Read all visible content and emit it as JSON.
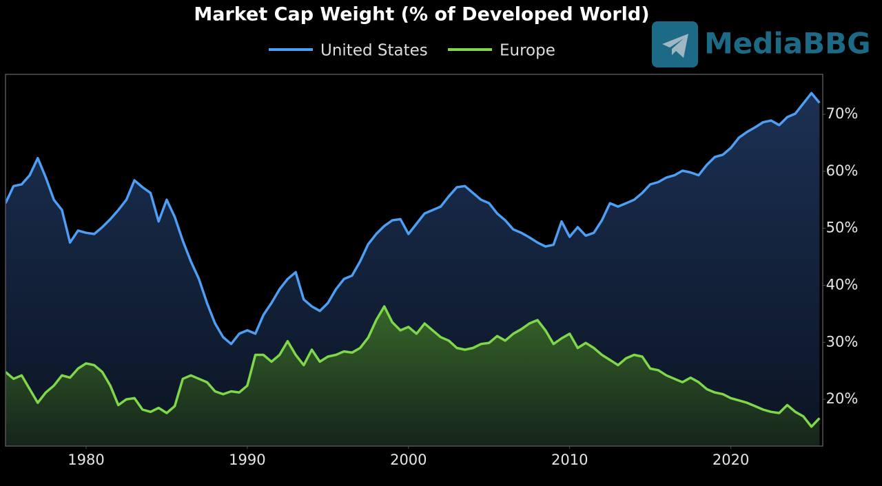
{
  "chart_data": {
    "type": "line",
    "title": "Market Cap Weight (% of Developed World)",
    "watermark": "MediaBBG",
    "x": [
      1975,
      1975.5,
      1976,
      1976.5,
      1977,
      1977.5,
      1978,
      1978.5,
      1979,
      1979.5,
      1980,
      1980.5,
      1981,
      1981.5,
      1982,
      1982.5,
      1983,
      1983.5,
      1984,
      1984.5,
      1985,
      1985.5,
      1986,
      1986.5,
      1987,
      1987.5,
      1988,
      1988.5,
      1989,
      1989.5,
      1990,
      1990.5,
      1991,
      1991.5,
      1992,
      1992.5,
      1993,
      1993.5,
      1994,
      1994.5,
      1995,
      1995.5,
      1996,
      1996.5,
      1997,
      1997.5,
      1998,
      1998.5,
      1999,
      1999.5,
      2000,
      2000.5,
      2001,
      2001.5,
      2002,
      2002.5,
      2003,
      2003.5,
      2004,
      2004.5,
      2005,
      2005.5,
      2006,
      2006.5,
      2007,
      2007.5,
      2008,
      2008.5,
      2009,
      2009.5,
      2010,
      2010.5,
      2011,
      2011.5,
      2012,
      2012.5,
      2013,
      2013.5,
      2014,
      2014.5,
      2015,
      2015.5,
      2016,
      2016.5,
      2017,
      2017.5,
      2018,
      2018.5,
      2019,
      2019.5,
      2020,
      2020.5,
      2021,
      2021.5,
      2022,
      2022.5,
      2023,
      2023.5,
      2024,
      2024.5,
      2025,
      2025.5
    ],
    "series": [
      {
        "name": "United States",
        "color": "#4d9ff5",
        "values": [
          54.4,
          57.4,
          57.7,
          59.3,
          62.3,
          58.9,
          55,
          53.2,
          47.5,
          49.6,
          49.2,
          49,
          50.2,
          51.6,
          53.2,
          55,
          58.4,
          57.2,
          56.2,
          51.2,
          55,
          52,
          47.8,
          44.2,
          41.1,
          36.9,
          33.3,
          30.9,
          29.7,
          31.5,
          32.1,
          31.5,
          34.8,
          36.9,
          39.3,
          41.1,
          42.3,
          37.5,
          36.3,
          35.5,
          36.9,
          39.3,
          41.1,
          41.7,
          44.2,
          47.2,
          49,
          50.4,
          51.4,
          51.6,
          49,
          50.8,
          52.6,
          53.2,
          53.8,
          55.6,
          57.2,
          57.4,
          56.2,
          55,
          54.4,
          52.6,
          51.4,
          49.8,
          49.2,
          48.4,
          47.5,
          46.8,
          47.1,
          51.2,
          48.5,
          50.2,
          48.7,
          49.2,
          51.4,
          54.4,
          53.8,
          54.4,
          55,
          56.2,
          57.7,
          58.1,
          58.9,
          59.3,
          60.1,
          59.8,
          59.3,
          61.1,
          62.5,
          62.9,
          64.1,
          65.9,
          66.9,
          67.7,
          68.6,
          68.9,
          68.1,
          69.5,
          70.1,
          71.9,
          73.7,
          72.0
        ]
      },
      {
        "name": "Europe",
        "color": "#7fd84a",
        "values": [
          24.8,
          23.6,
          24.2,
          21.8,
          19.4,
          21.2,
          22.4,
          24.2,
          23.8,
          25.4,
          26.3,
          26,
          24.8,
          22.4,
          19,
          20,
          20.2,
          18.2,
          17.8,
          18.5,
          17.6,
          18.8,
          23.6,
          24.2,
          23.6,
          23,
          21.4,
          20.9,
          21.4,
          21.2,
          22.4,
          27.8,
          27.8,
          26.6,
          27.8,
          30.2,
          27.8,
          26,
          28.7,
          26.6,
          27.5,
          27.8,
          28.4,
          28.2,
          29,
          30.8,
          33.9,
          36.3,
          33.5,
          32.1,
          32.7,
          31.5,
          33.3,
          32.1,
          30.9,
          30.3,
          29,
          28.7,
          29,
          29.7,
          29.9,
          31.1,
          30.3,
          31.5,
          32.3,
          33.3,
          33.9,
          32.1,
          29.7,
          30.7,
          31.5,
          29,
          29.9,
          29,
          27.8,
          26.9,
          26,
          27.2,
          27.8,
          27.5,
          25.4,
          25.1,
          24.2,
          23.6,
          23,
          23.8,
          23,
          21.8,
          21.2,
          20.9,
          20.2,
          19.8,
          19.4,
          18.8,
          18.2,
          17.8,
          17.6,
          19,
          17.8,
          17,
          15.2,
          16.7
        ]
      }
    ],
    "xlim": [
      1975,
      2025.7
    ],
    "ylim": [
      11.8,
      77
    ],
    "xticks": [
      1980,
      1990,
      2000,
      2010,
      2020
    ],
    "yticks": [
      {
        "value": 20,
        "label": "20%"
      },
      {
        "value": 30,
        "label": "30%"
      },
      {
        "value": 40,
        "label": "40%"
      },
      {
        "value": 50,
        "label": "50%"
      },
      {
        "value": 60,
        "label": "60%"
      },
      {
        "value": 70,
        "label": "70%"
      }
    ],
    "grid": false,
    "legend": "top"
  }
}
